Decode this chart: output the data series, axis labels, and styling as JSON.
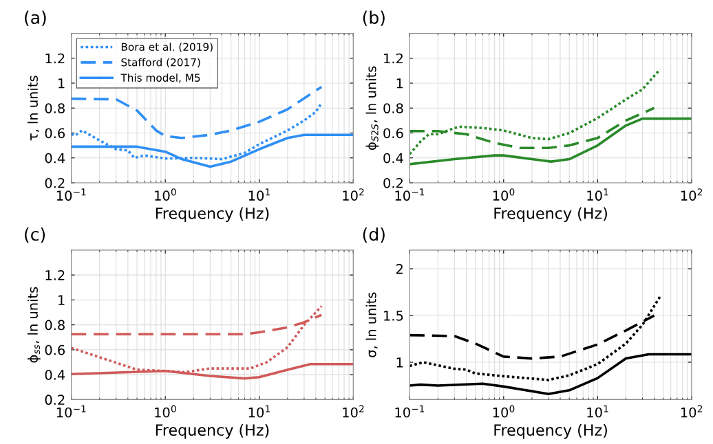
{
  "chart_data": [
    {
      "type": "line",
      "title": "(a)",
      "xlabel": "Frequency (Hz)",
      "ylabel": "τ, ln units",
      "log": "x",
      "grid": true,
      "legend": "top left",
      "xlim": [
        0.1,
        100
      ],
      "xticks": [
        {
          "value": 0.1,
          "label": "10$^{−1}$"
        },
        {
          "value": 1,
          "label": "10$^{0}$"
        },
        {
          "value": 10,
          "label": "10$^{1}$"
        },
        {
          "value": 100,
          "label": "10$^{2}$"
        }
      ],
      "ylim": [
        0.2,
        1.4
      ],
      "yticks": [
        0.2,
        0.4,
        0.6,
        0.8,
        1,
        1.2
      ],
      "series": [
        {
          "name": "Bora et al. (2019)",
          "color": "#2f8ff5",
          "line_style": "dotted",
          "x": [
            0.1,
            0.11,
            0.13,
            0.2,
            0.3,
            0.4,
            0.47,
            0.6,
            1,
            2,
            3,
            4,
            7,
            10,
            20,
            30,
            40,
            46
          ],
          "values": [
            0.59,
            0.58,
            0.62,
            0.54,
            0.47,
            0.46,
            0.4,
            0.42,
            0.395,
            0.4,
            0.395,
            0.39,
            0.44,
            0.51,
            0.62,
            0.7,
            0.77,
            0.84
          ]
        },
        {
          "name": "Stafford (2017)",
          "color": "#2f8ff5",
          "line_style": "dashed",
          "x": [
            0.1,
            0.3,
            0.5,
            0.8,
            1,
            1.5,
            3,
            5,
            10,
            20,
            46
          ],
          "values": [
            0.875,
            0.87,
            0.78,
            0.62,
            0.575,
            0.56,
            0.585,
            0.62,
            0.69,
            0.79,
            0.97
          ]
        },
        {
          "name": "This model, M5",
          "color": "#2f8ff5",
          "line_style": "solid",
          "x": [
            0.1,
            0.5,
            1,
            1.5,
            3,
            5,
            10,
            20,
            30,
            100
          ],
          "values": [
            0.49,
            0.49,
            0.45,
            0.39,
            0.33,
            0.37,
            0.47,
            0.56,
            0.585,
            0.585
          ]
        }
      ]
    },
    {
      "type": "line",
      "title": "(b)",
      "xlabel": "Frequency (Hz)",
      "ylabel": "ϕ$_{S2S}$, ln units",
      "log": "x",
      "grid": true,
      "xlim": [
        0.1,
        100
      ],
      "xticks": [
        {
          "value": 0.1,
          "label": "10$^{−1}$"
        },
        {
          "value": 1,
          "label": "10$^{0}$"
        },
        {
          "value": 10,
          "label": "10$^{1}$"
        },
        {
          "value": 100,
          "label": "10$^{2}$"
        }
      ],
      "ylim": [
        0.2,
        1.4
      ],
      "yticks": [
        0.2,
        0.4,
        0.6,
        0.8,
        1,
        1.2
      ],
      "series": [
        {
          "color": "#2a8a2a",
          "line_style": "dotted",
          "x": [
            0.1,
            0.13,
            0.16,
            0.2,
            0.3,
            0.35,
            0.6,
            1,
            2,
            3,
            5,
            10,
            20,
            30,
            46
          ],
          "values": [
            0.43,
            0.53,
            0.59,
            0.59,
            0.64,
            0.65,
            0.64,
            0.62,
            0.56,
            0.55,
            0.6,
            0.72,
            0.87,
            0.95,
            1.11
          ]
        },
        {
          "color": "#2a8a2a",
          "line_style": "dashed",
          "x": [
            0.1,
            0.2,
            0.4,
            0.8,
            1.5,
            3,
            5,
            10,
            20,
            40
          ],
          "values": [
            0.615,
            0.615,
            0.59,
            0.52,
            0.48,
            0.48,
            0.5,
            0.56,
            0.7,
            0.8
          ]
        },
        {
          "color": "#2a8a2a",
          "line_style": "solid",
          "x": [
            0.1,
            0.3,
            0.8,
            1,
            2,
            3.2,
            5,
            10,
            20,
            30,
            100
          ],
          "values": [
            0.35,
            0.39,
            0.42,
            0.42,
            0.39,
            0.37,
            0.39,
            0.5,
            0.66,
            0.715,
            0.715
          ]
        }
      ]
    },
    {
      "type": "line",
      "title": "(c)",
      "xlabel": "Frequency (Hz)",
      "ylabel": "ϕ$_{ss}$, ln units",
      "log": "x",
      "grid": true,
      "xlim": [
        0.1,
        100
      ],
      "xticks": [
        {
          "value": 0.1,
          "label": "10$^{−1}$"
        },
        {
          "value": 1,
          "label": "10$^{0}$"
        },
        {
          "value": 10,
          "label": "10$^{1}$"
        },
        {
          "value": 100,
          "label": "10$^{2}$"
        }
      ],
      "ylim": [
        0.2,
        1.4
      ],
      "yticks": [
        0.2,
        0.4,
        0.6,
        0.8,
        1,
        1.2
      ],
      "series": [
        {
          "color": "#d05a5a",
          "line_style": "dotted",
          "x": [
            0.1,
            0.2,
            0.5,
            1,
            1.6,
            3,
            8,
            12,
            20,
            30,
            46
          ],
          "values": [
            0.615,
            0.54,
            0.44,
            0.43,
            0.42,
            0.45,
            0.45,
            0.5,
            0.62,
            0.8,
            0.95
          ]
        },
        {
          "color": "#d05a5a",
          "line_style": "dashed",
          "x": [
            0.1,
            7,
            10,
            20,
            30,
            46
          ],
          "values": [
            0.725,
            0.725,
            0.74,
            0.78,
            0.82,
            0.88
          ]
        },
        {
          "color": "#d05a5a",
          "line_style": "solid",
          "x": [
            0.1,
            1,
            3,
            7,
            10,
            20,
            35,
            100
          ],
          "values": [
            0.405,
            0.43,
            0.39,
            0.37,
            0.38,
            0.44,
            0.485,
            0.485
          ]
        }
      ]
    },
    {
      "type": "line",
      "title": "(d)",
      "xlabel": "Frequency (Hz)",
      "ylabel": "σ, ln units",
      "log": "x",
      "grid": true,
      "xlim": [
        0.1,
        100
      ],
      "xticks": [
        {
          "value": 0.1,
          "label": "10$^{−1}$"
        },
        {
          "value": 1,
          "label": "10$^{0}$"
        },
        {
          "value": 10,
          "label": "10$^{1}$"
        },
        {
          "value": 100,
          "label": "10$^{2}$"
        }
      ],
      "ylim": [
        0.6,
        2.2
      ],
      "yticks": [
        1,
        1.5,
        2
      ],
      "series": [
        {
          "color": "#000000",
          "line_style": "dotted",
          "x": [
            0.1,
            0.14,
            0.3,
            0.4,
            0.5,
            1,
            3,
            5,
            10,
            20,
            30,
            46
          ],
          "values": [
            0.96,
            1.0,
            0.93,
            0.92,
            0.88,
            0.85,
            0.81,
            0.86,
            0.98,
            1.2,
            1.4,
            1.7
          ]
        },
        {
          "color": "#000000",
          "line_style": "dashed",
          "x": [
            0.1,
            0.3,
            0.5,
            1,
            2,
            4,
            10,
            20,
            40
          ],
          "values": [
            1.29,
            1.28,
            1.2,
            1.06,
            1.04,
            1.06,
            1.19,
            1.34,
            1.5
          ]
        },
        {
          "color": "#000000",
          "line_style": "solid",
          "x": [
            0.1,
            0.13,
            0.2,
            0.6,
            1,
            3,
            5,
            10,
            20,
            35,
            100
          ],
          "values": [
            0.75,
            0.76,
            0.75,
            0.77,
            0.74,
            0.66,
            0.7,
            0.83,
            1.04,
            1.085,
            1.085
          ]
        }
      ]
    }
  ]
}
